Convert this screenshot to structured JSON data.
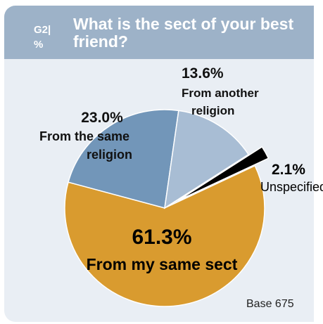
{
  "header": {
    "code": "G2| %",
    "title": "What is the sect of your best friend?"
  },
  "footer": {
    "base": "Base 675"
  },
  "colors": {
    "header": "#9db2c8",
    "panel": "#e9eef4",
    "same_sect": "#d99b2f",
    "same_religion": "#7296b9",
    "another_religion": "#a8bdd4",
    "unspecified": "#000000"
  },
  "chart_data": {
    "type": "pie",
    "slices": [
      {
        "label": "From my same sect",
        "value": 61.3,
        "value_label": "61.3%",
        "color": "#d99b2f"
      },
      {
        "label": "From the same religion",
        "value": 23.0,
        "value_label": "23.0%",
        "color": "#7296b9"
      },
      {
        "label": "From another religion",
        "value": 13.6,
        "value_label": "13.6%",
        "color": "#a8bdd4"
      },
      {
        "label": "Unspecified",
        "value": 2.1,
        "value_label": "2.1%",
        "color": "#000000",
        "exploded": true
      }
    ]
  }
}
